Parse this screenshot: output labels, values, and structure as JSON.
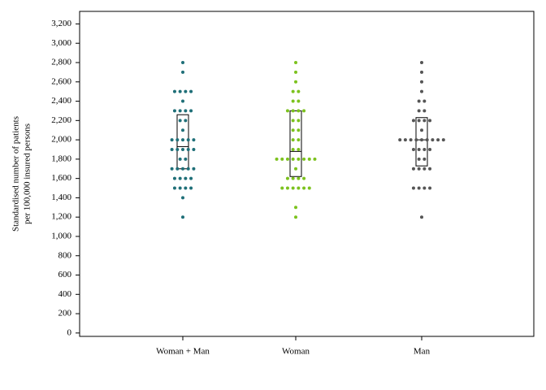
{
  "chart_data": {
    "type": "dotplot",
    "ylabel": [
      "Standardised number of patients",
      "per 100,000 insured persons"
    ],
    "categories": [
      "Woman + Man",
      "Woman",
      "Man"
    ],
    "colors": [
      "#1f6f78",
      "#7cc21e",
      "#555555"
    ],
    "points": [
      [
        2800,
        2700,
        2500,
        2500,
        2500,
        2500,
        2400,
        2300,
        2300,
        2300,
        2300,
        2200,
        2200,
        2100,
        2000,
        2000,
        2000,
        2000,
        2000,
        1900,
        1900,
        1900,
        1900,
        1900,
        1800,
        1800,
        1700,
        1700,
        1700,
        1700,
        1700,
        1600,
        1600,
        1600,
        1600,
        1500,
        1500,
        1500,
        1500,
        1400,
        1200
      ],
      [
        2800,
        2700,
        2600,
        2500,
        2500,
        2400,
        2400,
        2300,
        2300,
        2300,
        2300,
        2200,
        2200,
        2100,
        2100,
        2000,
        2000,
        1900,
        1900,
        1800,
        1800,
        1800,
        1800,
        1800,
        1800,
        1800,
        1800,
        1700,
        1600,
        1600,
        1600,
        1600,
        1500,
        1500,
        1500,
        1500,
        1500,
        1500,
        1300,
        1200
      ],
      [
        2800,
        2700,
        2600,
        2500,
        2400,
        2400,
        2300,
        2300,
        2200,
        2200,
        2200,
        2200,
        2100,
        2000,
        2000,
        2000,
        2000,
        2000,
        2000,
        2000,
        2000,
        2000,
        1900,
        1900,
        1900,
        1900,
        1800,
        1800,
        1700,
        1700,
        1700,
        1700,
        1500,
        1500,
        1500,
        1500,
        1200
      ]
    ],
    "boxes": [
      {
        "q1": 1700,
        "median": 1930,
        "q3": 2260
      },
      {
        "q1": 1620,
        "median": 1880,
        "q3": 2300
      },
      {
        "q1": 1730,
        "median": 2000,
        "q3": 2230
      }
    ],
    "ylim": [
      -35,
      3330
    ],
    "yticks": [
      0,
      200,
      400,
      600,
      800,
      {
        "value": 1000,
        "label": "1,000"
      },
      {
        "value": 1200,
        "label": "1,200"
      },
      {
        "value": 1400,
        "label": "1,400"
      },
      {
        "value": 1600,
        "label": "1,600"
      },
      {
        "value": 1800,
        "label": "1,800"
      },
      {
        "value": 2000,
        "label": "2,000"
      },
      {
        "value": 2200,
        "label": "2,200"
      },
      {
        "value": 2400,
        "label": "2,400"
      },
      {
        "value": 2600,
        "label": "2,600"
      },
      {
        "value": 2800,
        "label": "2,800"
      },
      {
        "value": 3000,
        "label": "3,000"
      },
      {
        "value": 3200,
        "label": "3,200"
      }
    ]
  }
}
